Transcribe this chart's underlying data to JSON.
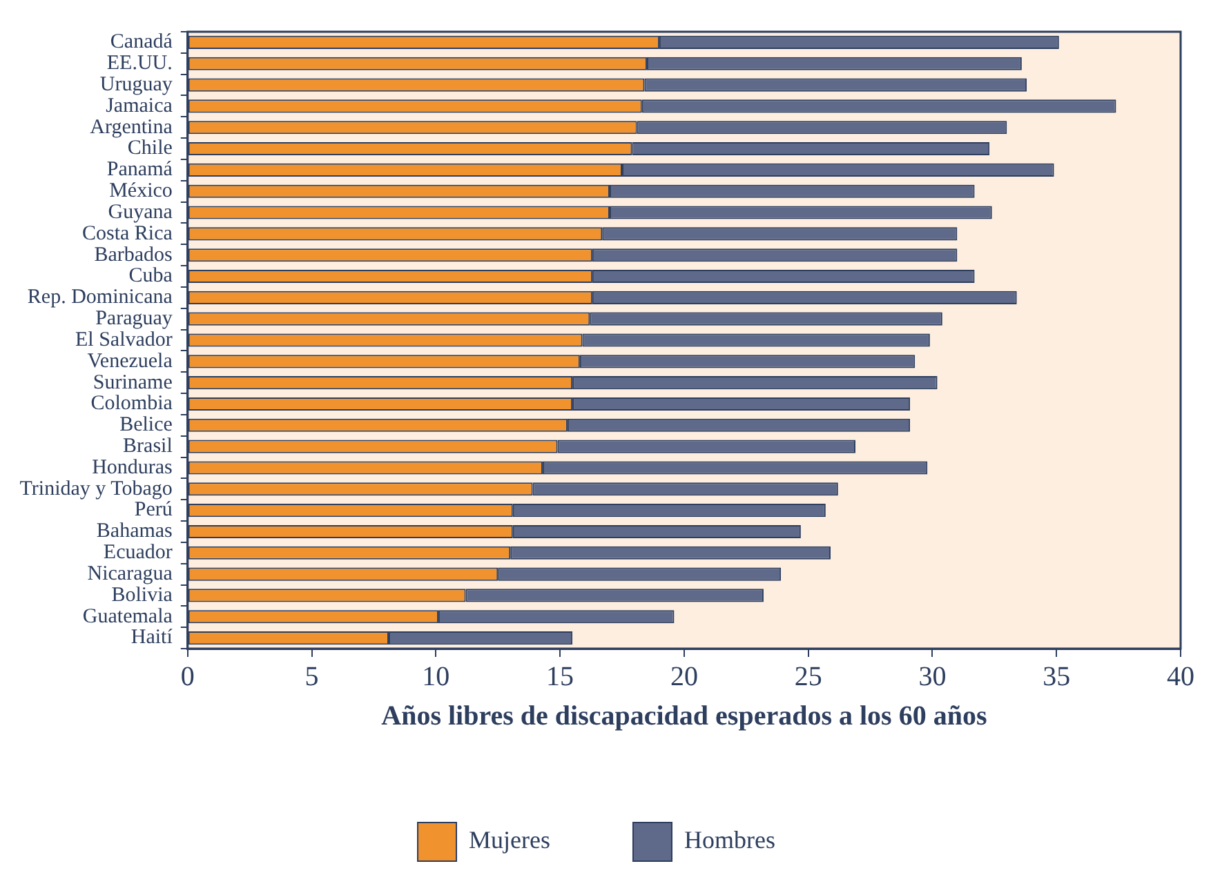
{
  "chart_data": {
    "type": "bar",
    "orientation": "horizontal",
    "stacked": true,
    "xlabel": "Años libres de discapacidad esperados a los 60 años",
    "categories": [
      "Canadá",
      "EE.UU.",
      "Uruguay",
      "Jamaica",
      "Argentina",
      "Chile",
      "Panamá",
      "México",
      "Guyana",
      "Costa Rica",
      "Barbados",
      "Cuba",
      "Rep. Dominicana",
      "Paraguay",
      "El Salvador",
      "Venezuela",
      "Suriname",
      "Colombia",
      "Belice",
      "Brasil",
      "Honduras",
      "Triniday y Tobago",
      "Perú",
      "Bahamas",
      "Ecuador",
      "Nicaragua",
      "Bolivia",
      "Guatemala",
      "Haití"
    ],
    "series": [
      {
        "name": "Mujeres",
        "color": "#f0922e",
        "values": [
          19.0,
          18.5,
          18.4,
          18.3,
          18.1,
          17.9,
          17.5,
          17.0,
          17.0,
          16.7,
          16.3,
          16.3,
          16.3,
          16.2,
          15.9,
          15.8,
          15.5,
          15.5,
          15.3,
          14.9,
          14.3,
          13.9,
          13.1,
          13.1,
          13.0,
          12.5,
          11.2,
          10.1,
          8.1
        ]
      },
      {
        "name": "Hombres",
        "color": "#5f6a8a",
        "values": [
          16.1,
          15.1,
          15.4,
          19.1,
          14.9,
          14.4,
          17.4,
          14.7,
          15.4,
          14.3,
          14.7,
          15.4,
          17.1,
          14.2,
          14.0,
          13.5,
          14.7,
          13.6,
          13.8,
          12.0,
          15.5,
          12.3,
          12.6,
          11.6,
          12.9,
          11.4,
          12.0,
          9.5,
          7.4
        ]
      }
    ],
    "xlim": [
      0,
      40
    ],
    "xticks": [
      0,
      5,
      10,
      15,
      20,
      25,
      30,
      35,
      40
    ],
    "grid": false,
    "legend": "bottom"
  }
}
